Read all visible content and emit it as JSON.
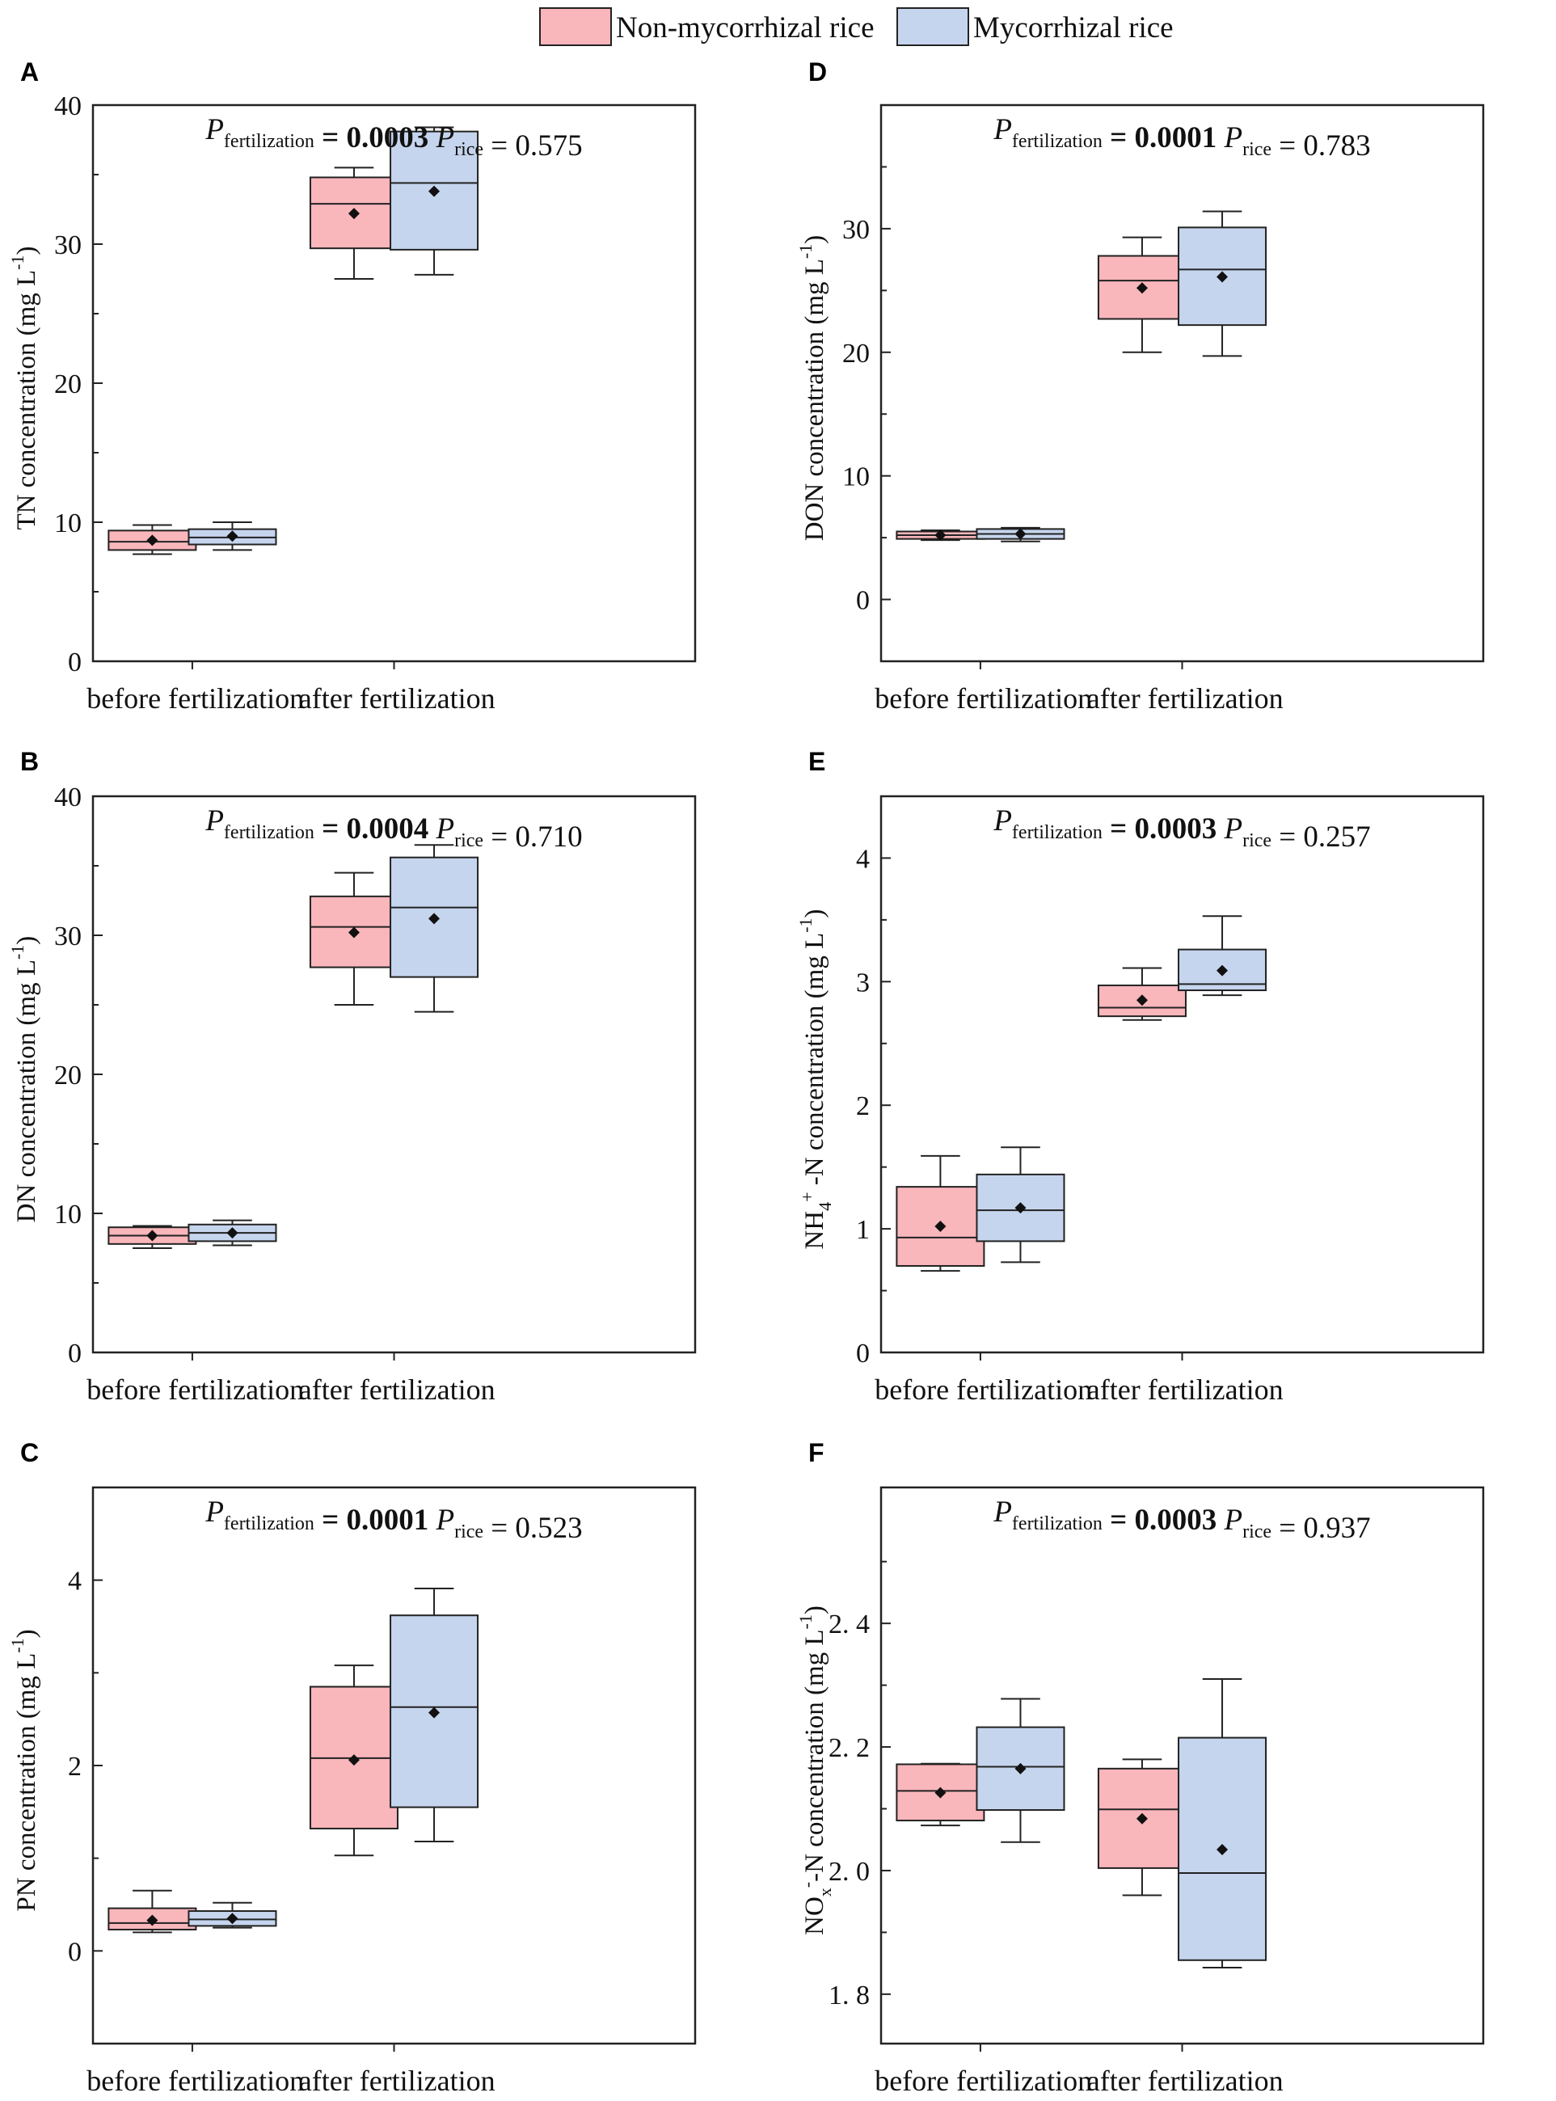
{
  "legend": {
    "series": [
      {
        "name": "Non-mycorrhizal rice",
        "color": "#f9b6bb"
      },
      {
        "name": "Mycorrhizal rice",
        "color": "#c6d5ee"
      }
    ]
  },
  "chart_data": [
    {
      "panel": "A",
      "type": "boxplot",
      "ylabel_main": "TN concentration (mg L",
      "ylabel_sup": "-1",
      "ylabel_end": ")",
      "ylim": [
        0,
        40
      ],
      "yticks": [
        "0",
        "10",
        "20",
        "30",
        "40"
      ],
      "categories": [
        "before fertilization",
        "after fertilization"
      ],
      "stats": {
        "p_label": "P",
        "fert_sub": "fertilization",
        "fert_val": "= 0.0003",
        "rice_sub": "rice",
        "rice_val": "= 0.575"
      },
      "series": [
        {
          "name": "Non-mycorrhizal rice",
          "boxes": [
            {
              "min": 7.7,
              "q1": 8.0,
              "median": 8.6,
              "q3": 9.4,
              "max": 9.8,
              "mean": 8.7
            },
            {
              "min": 27.5,
              "q1": 29.7,
              "median": 32.9,
              "q3": 34.8,
              "max": 35.5,
              "mean": 32.2
            }
          ]
        },
        {
          "name": "Mycorrhizal rice",
          "boxes": [
            {
              "min": 8.0,
              "q1": 8.4,
              "median": 8.9,
              "q3": 9.5,
              "max": 10.0,
              "mean": 9.0
            },
            {
              "min": 27.8,
              "q1": 29.6,
              "median": 34.4,
              "q3": 38.1,
              "max": 38.4,
              "mean": 33.8
            }
          ]
        }
      ]
    },
    {
      "panel": "B",
      "type": "boxplot",
      "ylabel_main": "DN concentration (mg L",
      "ylabel_sup": "-1",
      "ylabel_end": ")",
      "ylim": [
        0,
        40
      ],
      "yticks": [
        "0",
        "10",
        "20",
        "30",
        "40"
      ],
      "categories": [
        "before fertilization",
        "after fertilization"
      ],
      "stats": {
        "p_label": "P",
        "fert_sub": "fertilization",
        "fert_val": "= 0.0004",
        "rice_sub": "rice",
        "rice_val": "= 0.710"
      },
      "series": [
        {
          "name": "Non-mycorrhizal rice",
          "boxes": [
            {
              "min": 7.5,
              "q1": 7.8,
              "median": 8.4,
              "q3": 9.0,
              "max": 9.1,
              "mean": 8.4
            },
            {
              "min": 25.0,
              "q1": 27.7,
              "median": 30.6,
              "q3": 32.8,
              "max": 34.5,
              "mean": 30.2
            }
          ]
        },
        {
          "name": "Mycorrhizal rice",
          "boxes": [
            {
              "min": 7.7,
              "q1": 8.0,
              "median": 8.6,
              "q3": 9.2,
              "max": 9.5,
              "mean": 8.6
            },
            {
              "min": 24.5,
              "q1": 27.0,
              "median": 32.0,
              "q3": 35.6,
              "max": 36.5,
              "mean": 31.2
            }
          ]
        }
      ]
    },
    {
      "panel": "C",
      "type": "boxplot",
      "ylabel_main": "PN concentration (mg L",
      "ylabel_sup": "-1",
      "ylabel_end": ")",
      "ylim": [
        -1,
        5
      ],
      "yticks": [
        "0",
        "2",
        "4"
      ],
      "categories": [
        "before fertilization",
        "after fertilization"
      ],
      "stats": {
        "p_label": "P",
        "fert_sub": "fertilization",
        "fert_val": "= 0.0001",
        "rice_sub": "rice",
        "rice_val": "= 0.523"
      },
      "series": [
        {
          "name": "Non-mycorrhizal rice",
          "boxes": [
            {
              "min": 0.2,
              "q1": 0.23,
              "median": 0.3,
              "q3": 0.46,
              "max": 0.65,
              "mean": 0.33
            },
            {
              "min": 1.03,
              "q1": 1.32,
              "median": 2.08,
              "q3": 2.85,
              "max": 3.08,
              "mean": 2.06
            }
          ]
        },
        {
          "name": "Mycorrhizal rice",
          "boxes": [
            {
              "min": 0.25,
              "q1": 0.27,
              "median": 0.34,
              "q3": 0.43,
              "max": 0.52,
              "mean": 0.35
            },
            {
              "min": 1.18,
              "q1": 1.55,
              "median": 2.63,
              "q3": 3.62,
              "max": 3.91,
              "mean": 2.57
            }
          ]
        }
      ]
    },
    {
      "panel": "D",
      "type": "boxplot",
      "ylabel_main": "DON concentration (mg L",
      "ylabel_sup": "-1",
      "ylabel_end": ")",
      "ylim": [
        -5,
        40
      ],
      "yticks": [
        "0",
        "10",
        "20",
        "30"
      ],
      "categories": [
        "before fertilization",
        "after fertilization"
      ],
      "stats": {
        "p_label": "P",
        "fert_sub": "fertilization",
        "fert_val": "= 0.0001",
        "rice_sub": "rice",
        "rice_val": "= 0.783"
      },
      "series": [
        {
          "name": "Non-mycorrhizal rice",
          "boxes": [
            {
              "min": 4.8,
              "q1": 4.9,
              "median": 5.2,
              "q3": 5.5,
              "max": 5.6,
              "mean": 5.2
            },
            {
              "min": 20.0,
              "q1": 22.7,
              "median": 25.8,
              "q3": 27.8,
              "max": 29.3,
              "mean": 25.2
            }
          ]
        },
        {
          "name": "Mycorrhizal rice",
          "boxes": [
            {
              "min": 4.7,
              "q1": 4.9,
              "median": 5.3,
              "q3": 5.7,
              "max": 5.8,
              "mean": 5.3
            },
            {
              "min": 19.7,
              "q1": 22.2,
              "median": 26.7,
              "q3": 30.1,
              "max": 31.4,
              "mean": 26.1
            }
          ]
        }
      ]
    },
    {
      "panel": "E",
      "type": "boxplot",
      "ylabel_pre": "NH",
      "ylabel_sub": "4",
      "ylabel_sup2": "+",
      "ylabel_main": " -N concentration (mg L",
      "ylabel_sup": "-1",
      "ylabel_end": ")",
      "ylim": [
        0,
        4.5
      ],
      "yticks": [
        "0",
        "1",
        "2",
        "3",
        "4"
      ],
      "categories": [
        "before fertilization",
        "after fertilization"
      ],
      "stats": {
        "p_label": "P",
        "fert_sub": "fertilization",
        "fert_val": "= 0.0003",
        "rice_sub": "rice",
        "rice_val": "= 0.257"
      },
      "series": [
        {
          "name": "Non-mycorrhizal rice",
          "boxes": [
            {
              "min": 0.66,
              "q1": 0.7,
              "median": 0.93,
              "q3": 1.34,
              "max": 1.59,
              "mean": 1.02
            },
            {
              "min": 2.69,
              "q1": 2.72,
              "median": 2.79,
              "q3": 2.97,
              "max": 3.11,
              "mean": 2.85
            }
          ]
        },
        {
          "name": "Mycorrhizal rice",
          "boxes": [
            {
              "min": 0.73,
              "q1": 0.9,
              "median": 1.15,
              "q3": 1.44,
              "max": 1.66,
              "mean": 1.17
            },
            {
              "min": 2.89,
              "q1": 2.93,
              "median": 2.98,
              "q3": 3.26,
              "max": 3.53,
              "mean": 3.09
            }
          ]
        }
      ]
    },
    {
      "panel": "F",
      "type": "boxplot",
      "ylabel_pre": "NO",
      "ylabel_sub": "x",
      "ylabel_sup2": "-",
      "ylabel_main": "-N concentration (mg L",
      "ylabel_sup": "-1",
      "ylabel_end": ")",
      "ylim": [
        1.72,
        2.62
      ],
      "yticks": [
        "1. 8",
        "2. 0",
        "2. 2",
        "2. 4"
      ],
      "categories": [
        "before fertilization",
        "after fertilization"
      ],
      "stats": {
        "p_label": "P",
        "fert_sub": "fertilization",
        "fert_val": "= 0.0003",
        "rice_sub": "rice",
        "rice_val": "= 0.937"
      },
      "series": [
        {
          "name": "Non-mycorrhizal rice",
          "boxes": [
            {
              "min": 2.073,
              "q1": 2.081,
              "median": 2.129,
              "q3": 2.172,
              "max": 2.173,
              "mean": 2.126
            },
            {
              "min": 1.96,
              "q1": 2.004,
              "median": 2.099,
              "q3": 2.165,
              "max": 2.18,
              "mean": 2.084
            }
          ]
        },
        {
          "name": "Mycorrhizal rice",
          "boxes": [
            {
              "min": 2.046,
              "q1": 2.098,
              "median": 2.168,
              "q3": 2.232,
              "max": 2.278,
              "mean": 2.165
            },
            {
              "min": 1.843,
              "q1": 1.855,
              "median": 1.996,
              "q3": 2.215,
              "max": 2.31,
              "mean": 2.034
            }
          ]
        }
      ]
    }
  ]
}
